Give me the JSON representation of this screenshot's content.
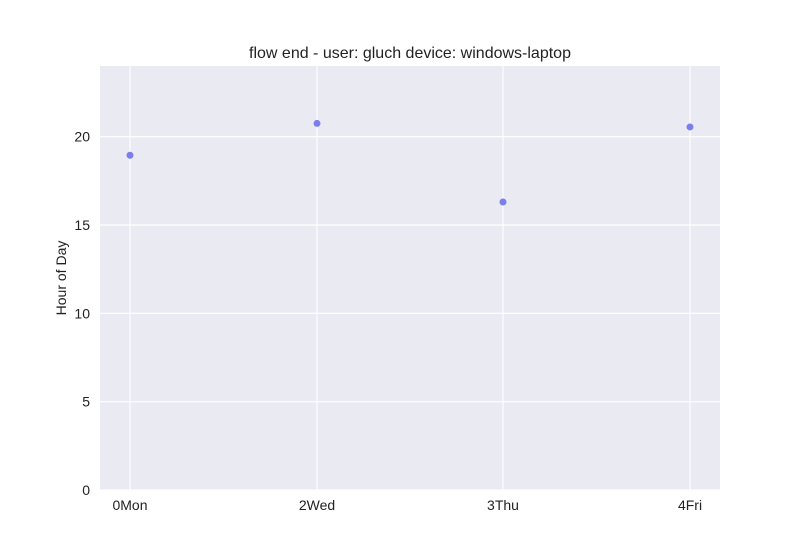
{
  "chart_data": {
    "type": "scatter",
    "title": "flow end - user: gluch device: windows-laptop",
    "xlabel": "",
    "ylabel": "Hour of Day",
    "categories": [
      "0Mon",
      "2Wed",
      "3Thu",
      "4Fri"
    ],
    "series": [
      {
        "values": [
          18.95,
          20.75,
          16.3,
          20.55
        ],
        "color": "#7b7fe9"
      }
    ],
    "ylim": [
      0,
      24
    ],
    "yticks": [
      0,
      5,
      10,
      15,
      20
    ],
    "grid": true,
    "background_color": "#eaeaf2",
    "grid_color": "#ffffff"
  }
}
